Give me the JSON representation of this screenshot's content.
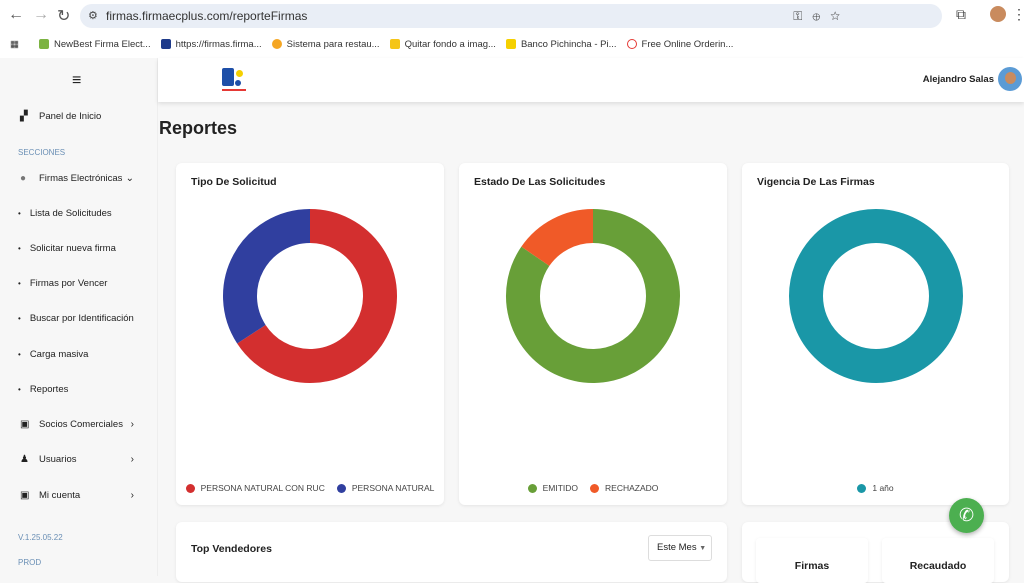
{
  "browser": {
    "url": "firmas.firmaecplus.com/reporteFirmas",
    "bookmarks": [
      {
        "label": "NewBest Firma Elect...",
        "color": "#7cb342"
      },
      {
        "label": "https://firmas.firma...",
        "color": "#1e3a8a"
      },
      {
        "label": "Sistema para restau...",
        "color": "#f5a623"
      },
      {
        "label": "Quitar fondo a imag...",
        "color": "#f5c518"
      },
      {
        "label": "Banco Pichincha - Pi...",
        "color": "#f5d000"
      },
      {
        "label": "Free Online Orderin...",
        "color": "#e53935"
      }
    ]
  },
  "header": {
    "user_name": "Alejandro Salas"
  },
  "sidebar": {
    "home": "Panel de Inicio",
    "section": "SECCIONES",
    "group": "Firmas Electrónicas",
    "subitems": [
      "Lista de Solicitudes",
      "Solicitar nueva firma",
      "Firmas por Vencer",
      "Buscar por Identificación",
      "Carga masiva",
      "Reportes"
    ],
    "socios": "Socios Comerciales",
    "usuarios": "Usuarios",
    "cuenta": "Mi cuenta",
    "version": "V.1.25.05.22",
    "env": "PROD"
  },
  "page": {
    "title": "Reportes"
  },
  "chart_data": [
    {
      "type": "pie",
      "title": "Tipo De Solicitud",
      "donut": true,
      "legend": "bottom",
      "categories": [
        "PERSONA NATURAL CON RUC",
        "PERSONA NATURAL"
      ],
      "values": [
        65.8,
        34.2
      ],
      "colors": [
        "#d32f2f",
        "#303f9f"
      ]
    },
    {
      "type": "pie",
      "title": "Estado De Las Solicitudes",
      "donut": true,
      "legend": "bottom",
      "categories": [
        "EMITIDO",
        "RECHAZADO"
      ],
      "values": [
        84.6,
        15.4
      ],
      "colors": [
        "#689f38",
        "#f05a28"
      ]
    },
    {
      "type": "pie",
      "title": "Vigencia De Las Firmas",
      "donut": true,
      "legend": "bottom",
      "categories": [
        "1 año"
      ],
      "values": [
        100
      ],
      "colors": [
        "#1a97a7"
      ]
    }
  ],
  "top_vendedores": {
    "title": "Top Vendedores",
    "period": "Este Mes"
  },
  "stats": {
    "firmas": "Firmas",
    "recaudado": "Recaudado"
  }
}
